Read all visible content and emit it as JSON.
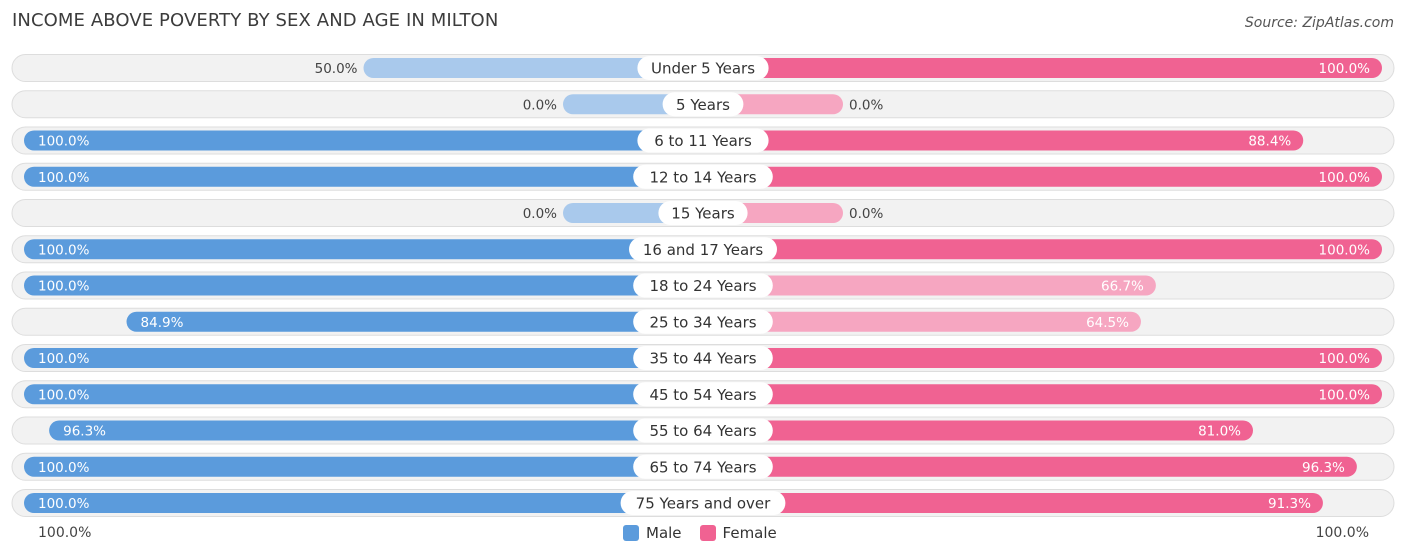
{
  "chart_data": {
    "type": "bar",
    "orientation": "horizontal-diverging",
    "title": "INCOME ABOVE POVERTY BY SEX AND AGE IN MILTON",
    "source": "Source: ZipAtlas.com",
    "categories": [
      "Under 5 Years",
      "5 Years",
      "6 to 11 Years",
      "12 to 14 Years",
      "15 Years",
      "16 and 17 Years",
      "18 to 24 Years",
      "25 to 34 Years",
      "35 to 44 Years",
      "45 to 54 Years",
      "55 to 64 Years",
      "65 to 74 Years",
      "75 Years and over"
    ],
    "series": [
      {
        "name": "Male",
        "color": "#5b9bdc",
        "light_color": "#a9c9ec",
        "values": [
          50.0,
          0.0,
          100.0,
          100.0,
          0.0,
          100.0,
          100.0,
          84.9,
          100.0,
          100.0,
          96.3,
          100.0,
          100.0
        ],
        "labels": [
          "50.0%",
          "0.0%",
          "100.0%",
          "100.0%",
          "0.0%",
          "100.0%",
          "100.0%",
          "84.9%",
          "100.0%",
          "100.0%",
          "96.3%",
          "100.0%",
          "100.0%"
        ]
      },
      {
        "name": "Female",
        "color": "#f06292",
        "light_color": "#f6a6c1",
        "values": [
          100.0,
          0.0,
          88.4,
          100.0,
          0.0,
          100.0,
          66.7,
          64.5,
          100.0,
          100.0,
          81.0,
          96.3,
          91.3
        ],
        "labels": [
          "100.0%",
          "0.0%",
          "88.4%",
          "100.0%",
          "0.0%",
          "100.0%",
          "66.7%",
          "64.5%",
          "100.0%",
          "100.0%",
          "81.0%",
          "96.3%",
          "91.3%"
        ]
      }
    ],
    "xlim": [
      -100,
      100
    ],
    "axis_left_label": "100.0%",
    "axis_right_label": "100.0%",
    "legend_position": "bottom-center"
  }
}
